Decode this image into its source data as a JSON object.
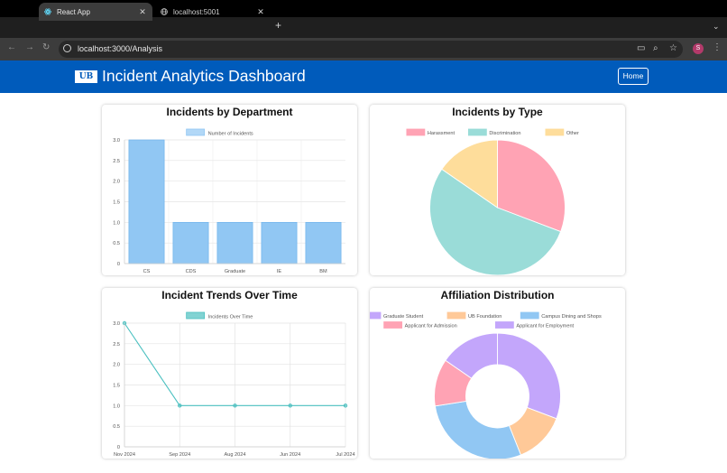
{
  "browser": {
    "tabs": [
      {
        "label": "React App",
        "active": true
      },
      {
        "label": "localhost:5001",
        "active": false
      }
    ],
    "url": "localhost:3000/Analysis",
    "profile_initial": "S"
  },
  "header": {
    "logo_text": "UB",
    "title": "Incident Analytics Dashboard",
    "home_label": "Home",
    "background": "#005bbb"
  },
  "chart_data": [
    {
      "type": "bar",
      "title": "Incidents by Department",
      "categories": [
        "CS",
        "CDS",
        "Graduate",
        "IE",
        "BM"
      ],
      "series": [
        {
          "name": "Number of Incidents",
          "values": [
            3,
            1,
            1,
            1,
            1
          ],
          "color": "#91c7f3"
        }
      ],
      "yticks": [
        "0",
        "0.5",
        "1.0",
        "1.5",
        "2.0",
        "2.5",
        "3.0"
      ],
      "ylim": [
        0,
        3
      ],
      "legend": "top"
    },
    {
      "type": "pie",
      "title": "Incidents by Type",
      "labels": [
        "Harassment",
        "Discrimination",
        "Other"
      ],
      "values": [
        2,
        3.5,
        1
      ],
      "colors": [
        "#ffa3b4",
        "#9adcd8",
        "#fedd9b"
      ],
      "legend": "top"
    },
    {
      "type": "line",
      "title": "Incident Trends Over Time",
      "categories": [
        "Nov 2024",
        "Sep 2024",
        "Aug 2024",
        "Jun 2024",
        "Jul 2024"
      ],
      "series": [
        {
          "name": "Incidents Over Time",
          "values": [
            3,
            1,
            1,
            1,
            1
          ],
          "color": "#4bc0c0"
        }
      ],
      "yticks": [
        "0",
        "0.5",
        "1.0",
        "1.5",
        "2.0",
        "2.5",
        "3.0"
      ],
      "ylim": [
        0,
        3
      ],
      "legend": "top"
    },
    {
      "type": "pie",
      "donut": true,
      "title": "Affiliation Distribution",
      "labels": [
        "Graduate Student",
        "UB Foundation",
        "Campus Dining and Shops",
        "Applicant for Admission",
        "Applicant for Employment"
      ],
      "values": [
        2.8,
        1.2,
        2.6,
        1.1,
        1.4
      ],
      "colors": [
        "#c3a6fb",
        "#ffc998",
        "#91c7f3",
        "#ffa3b4",
        "#c3a6fb"
      ],
      "legend": "top"
    }
  ]
}
